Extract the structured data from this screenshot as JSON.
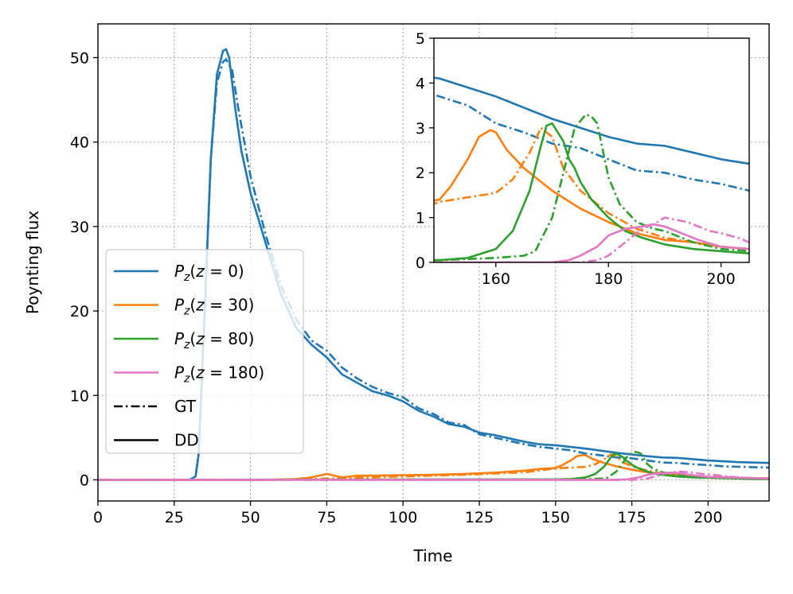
{
  "chart_data": [
    {
      "id": "main",
      "type": "line",
      "title": "",
      "xlabel": "Time",
      "ylabel": "Poynting flux",
      "xlim": [
        0,
        220
      ],
      "ylim": [
        -2.5,
        54
      ],
      "xticks": [
        0,
        25,
        50,
        75,
        100,
        125,
        150,
        175,
        200
      ],
      "yticks": [
        0,
        10,
        20,
        30,
        40,
        50
      ],
      "grid": true,
      "legend": {
        "placement": "lower-left",
        "entries": [
          {
            "label": "P_z(z = 0)",
            "prefix": "P",
            "sub": "z",
            "arg": "(z = 0)",
            "color": "#1f77b4",
            "style": "solid"
          },
          {
            "label": "P_z(z = 30)",
            "prefix": "P",
            "sub": "z",
            "arg": "(z = 30)",
            "color": "#ff7f0e",
            "style": "solid"
          },
          {
            "label": "P_z(z = 80)",
            "prefix": "P",
            "sub": "z",
            "arg": "(z = 80)",
            "color": "#2ca02c",
            "style": "solid"
          },
          {
            "label": "P_z(z = 180)",
            "prefix": "P",
            "sub": "z",
            "arg": "(z = 180)",
            "color": "#e377c2",
            "style": "solid"
          },
          {
            "label": "GT",
            "color": "#000000",
            "style": "dashdot"
          },
          {
            "label": "DD",
            "color": "#000000",
            "style": "solid"
          }
        ]
      },
      "series": [
        {
          "name": "P_z(z=0) DD",
          "color": "#1f77b4",
          "style": "solid",
          "x": [
            0,
            30,
            32,
            33,
            35,
            37,
            39,
            41,
            42,
            43,
            45,
            47,
            50,
            55,
            60,
            65,
            70,
            75,
            80,
            85,
            90,
            95,
            100,
            105,
            110,
            115,
            120,
            125,
            130,
            135,
            140,
            145,
            150,
            155,
            160,
            165,
            170,
            175,
            180,
            185,
            190,
            195,
            200,
            205,
            210,
            215,
            220
          ],
          "y": [
            0,
            0,
            0.4,
            3,
            20,
            38,
            48,
            50.8,
            51,
            50,
            44,
            39,
            34,
            28,
            22,
            18,
            16,
            14.5,
            12.5,
            11.5,
            10.5,
            10,
            9.3,
            8.2,
            7.5,
            6.6,
            6.3,
            5.6,
            5.3,
            4.9,
            4.5,
            4.2,
            4.1,
            3.9,
            3.7,
            3.45,
            3.2,
            3.0,
            2.8,
            2.65,
            2.6,
            2.45,
            2.3,
            2.2,
            2.1,
            2.05,
            2.0
          ]
        },
        {
          "name": "P_z(z=0) GT",
          "color": "#1f77b4",
          "style": "dashdot",
          "x": [
            0,
            30,
            32,
            33,
            35,
            37,
            39,
            41,
            42,
            44,
            46,
            48,
            50,
            55,
            60,
            65,
            70,
            75,
            80,
            85,
            90,
            95,
            100,
            105,
            110,
            115,
            120,
            125,
            130,
            135,
            140,
            145,
            150,
            155,
            160,
            165,
            170,
            175,
            180,
            185,
            190,
            195,
            200,
            205,
            210,
            215,
            220
          ],
          "y": [
            0,
            0,
            0.4,
            3,
            20,
            38,
            47,
            49.5,
            49.8,
            48.5,
            44,
            40,
            36,
            29,
            23,
            19,
            16.5,
            15.3,
            13.3,
            12,
            11,
            10.3,
            9.8,
            8.5,
            7.8,
            6.8,
            6.5,
            5.4,
            5.0,
            4.6,
            4.2,
            3.9,
            3.7,
            3.5,
            3.1,
            2.9,
            2.65,
            2.55,
            2.3,
            2.05,
            2.0,
            1.85,
            1.75,
            1.6,
            1.55,
            1.5,
            1.45
          ]
        },
        {
          "name": "P_z(z=30) DD",
          "color": "#ff7f0e",
          "style": "solid",
          "x": [
            0,
            55,
            65,
            70,
            75,
            80,
            85,
            90,
            100,
            110,
            120,
            130,
            140,
            145,
            150,
            152,
            155,
            157,
            159,
            160,
            162,
            165,
            168,
            170,
            175,
            180,
            185,
            190,
            195,
            200,
            205,
            210,
            215,
            220
          ],
          "y": [
            0,
            0,
            0.1,
            0.3,
            0.7,
            0.3,
            0.5,
            0.5,
            0.55,
            0.6,
            0.7,
            0.85,
            1.1,
            1.3,
            1.4,
            1.7,
            2.3,
            2.8,
            2.95,
            2.9,
            2.5,
            2.1,
            1.8,
            1.6,
            1.2,
            0.9,
            0.65,
            0.5,
            0.45,
            0.35,
            0.3,
            0.25,
            0.2,
            0.2
          ]
        },
        {
          "name": "P_z(z=30) GT",
          "color": "#ff7f0e",
          "style": "dashdot",
          "x": [
            0,
            60,
            80,
            100,
            120,
            140,
            150,
            155,
            160,
            163,
            166,
            168,
            170,
            172,
            175,
            180,
            185,
            190,
            195,
            200,
            205,
            210,
            215,
            220
          ],
          "y": [
            0,
            0,
            0.2,
            0.4,
            0.6,
            0.9,
            1.35,
            1.45,
            1.55,
            1.85,
            2.45,
            3.0,
            2.8,
            2.1,
            1.6,
            1.1,
            0.75,
            0.55,
            0.45,
            0.35,
            0.3,
            0.25,
            0.2,
            0.2
          ]
        },
        {
          "name": "P_z(z=80) DD",
          "color": "#2ca02c",
          "style": "solid",
          "x": [
            0,
            150,
            155,
            160,
            163,
            166,
            168,
            169,
            170,
            172,
            173,
            174,
            175,
            177,
            180,
            183,
            186,
            190,
            195,
            200,
            205,
            210,
            215,
            220
          ],
          "y": [
            0,
            0.05,
            0.1,
            0.3,
            0.7,
            1.6,
            2.6,
            3.05,
            3.1,
            2.7,
            2.3,
            2.1,
            1.8,
            1.4,
            1.0,
            0.7,
            0.55,
            0.4,
            0.3,
            0.25,
            0.2,
            0.15,
            0.1,
            0.1
          ]
        },
        {
          "name": "P_z(z=80) GT",
          "color": "#2ca02c",
          "style": "dashdot",
          "x": [
            0,
            150,
            160,
            165,
            167,
            170,
            172,
            174,
            176,
            177,
            178,
            179,
            180,
            182,
            185,
            188,
            190,
            195,
            200,
            205,
            210,
            215,
            220
          ],
          "y": [
            0,
            0.05,
            0.1,
            0.15,
            0.25,
            1.0,
            2.0,
            3.0,
            3.3,
            3.25,
            3.1,
            2.5,
            1.9,
            1.3,
            0.9,
            0.75,
            0.7,
            0.45,
            0.3,
            0.25,
            0.2,
            0.15,
            0.1
          ]
        },
        {
          "name": "P_z(z=180) DD",
          "color": "#e377c2",
          "style": "solid",
          "x": [
            0,
            170,
            173,
            175,
            178,
            180,
            183,
            186,
            188,
            190,
            193,
            196,
            200,
            205,
            210,
            215,
            220
          ],
          "y": [
            0,
            0,
            0.05,
            0.15,
            0.35,
            0.6,
            0.75,
            0.8,
            0.85,
            0.8,
            0.65,
            0.5,
            0.35,
            0.3,
            0.25,
            0.2,
            0.15
          ]
        },
        {
          "name": "P_z(z=180) GT",
          "color": "#e377c2",
          "style": "dashdot",
          "x": [
            0,
            175,
            178,
            180,
            183,
            186,
            188,
            190,
            192,
            194,
            196,
            198,
            200,
            203,
            205,
            210,
            215,
            220
          ],
          "y": [
            0,
            0,
            0.05,
            0.15,
            0.45,
            0.75,
            0.85,
            1.0,
            0.95,
            0.9,
            0.8,
            0.7,
            0.65,
            0.55,
            0.45,
            0.3,
            0.2,
            0.15
          ]
        }
      ]
    },
    {
      "id": "inset",
      "type": "line",
      "title": "",
      "xlabel": "",
      "ylabel": "",
      "xlim": [
        149,
        205
      ],
      "ylim": [
        0,
        5
      ],
      "xticks": [
        160,
        180,
        200
      ],
      "yticks": [
        0,
        1,
        2,
        3,
        4,
        5
      ],
      "grid": false,
      "series": "same as main"
    }
  ]
}
